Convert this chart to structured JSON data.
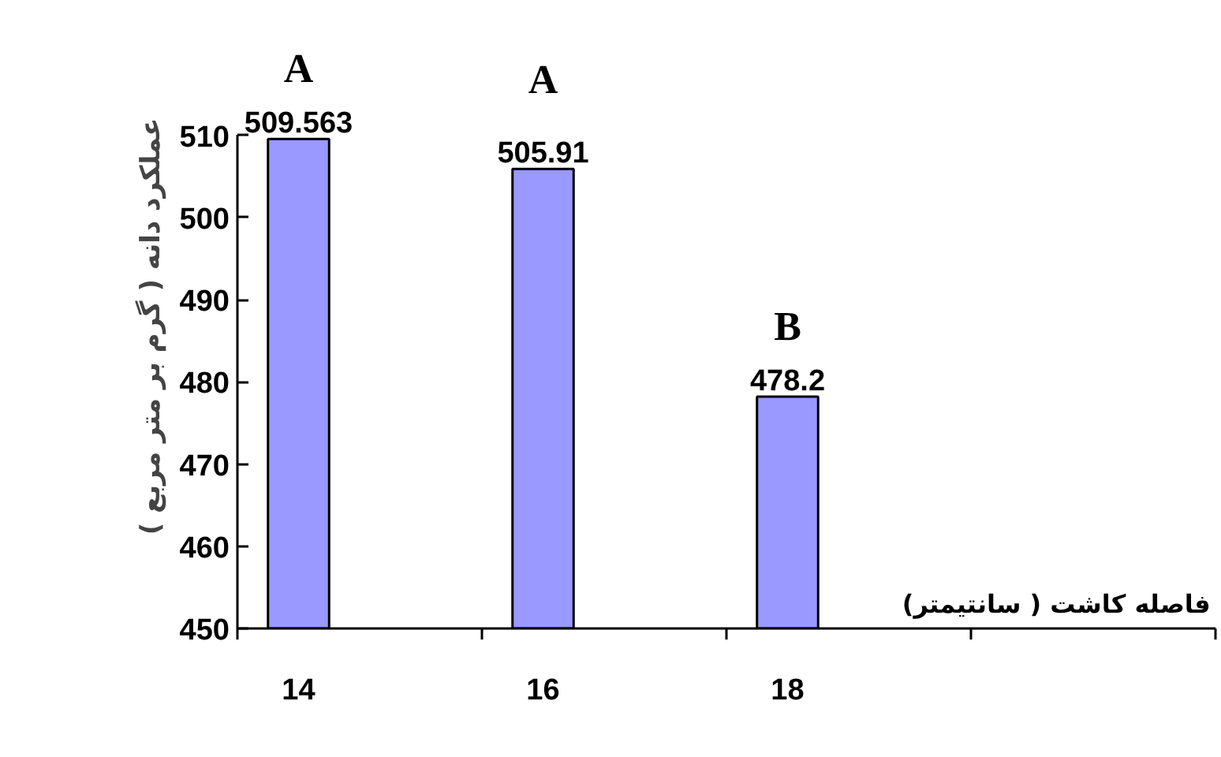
{
  "chart_data": {
    "type": "bar",
    "xlabel": "فاصله کاشت ( سانتیمتر)",
    "ylabel": "عملکرد دانه ( گرم بر متر مربع )",
    "categories": [
      "14",
      "16",
      "18",
      null
    ],
    "values": [
      509.563,
      505.91,
      478.2,
      null
    ],
    "color": "#9999ff",
    "ylim": [
      450,
      510
    ],
    "yticks": [
      450,
      460,
      470,
      480,
      490,
      500,
      510
    ],
    "data_labels": true,
    "grid": false,
    "annotations": [
      "A",
      "A",
      "B"
    ]
  }
}
